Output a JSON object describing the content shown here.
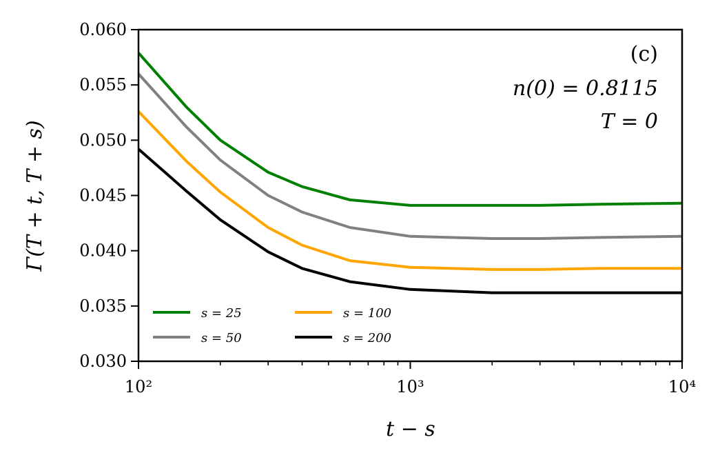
{
  "chart_data": {
    "type": "line",
    "xscale": "log",
    "xlim": [
      100,
      10000
    ],
    "ylim": [
      0.03,
      0.06
    ],
    "xlabel": "t − s",
    "ylabel": "Γ(T + t, T + s)",
    "x_ticks": [
      {
        "value": 100,
        "label": "10²"
      },
      {
        "value": 1000,
        "label": "10³"
      },
      {
        "value": 10000,
        "label": "10⁴"
      }
    ],
    "y_ticks": [
      {
        "value": 0.03,
        "label": "0.030"
      },
      {
        "value": 0.035,
        "label": "0.035"
      },
      {
        "value": 0.04,
        "label": "0.040"
      },
      {
        "value": 0.045,
        "label": "0.045"
      },
      {
        "value": 0.05,
        "label": "0.050"
      },
      {
        "value": 0.055,
        "label": "0.055"
      },
      {
        "value": 0.06,
        "label": "0.060"
      }
    ],
    "annotations": [
      "(c)",
      "n(0) = 0.8115",
      "T = 0"
    ],
    "grid": false,
    "legend_placement": "lower-left",
    "series": [
      {
        "name": "s = 25",
        "color": "#008000",
        "x": [
          100,
          150,
          200,
          300,
          400,
          600,
          1000,
          2000,
          3000,
          5000,
          10000
        ],
        "y": [
          0.0579,
          0.053,
          0.05,
          0.0471,
          0.0458,
          0.0446,
          0.0441,
          0.0441,
          0.0441,
          0.0442,
          0.0443
        ]
      },
      {
        "name": "s = 50",
        "color": "#808080",
        "x": [
          100,
          150,
          200,
          300,
          400,
          600,
          1000,
          2000,
          3000,
          5000,
          10000
        ],
        "y": [
          0.056,
          0.0512,
          0.0482,
          0.045,
          0.0435,
          0.0421,
          0.0413,
          0.0411,
          0.0411,
          0.0412,
          0.0413
        ]
      },
      {
        "name": "s = 100",
        "color": "#FFA500",
        "x": [
          100,
          150,
          200,
          300,
          400,
          600,
          1000,
          2000,
          3000,
          5000,
          10000
        ],
        "y": [
          0.0526,
          0.0481,
          0.0453,
          0.0421,
          0.0405,
          0.0391,
          0.0385,
          0.0383,
          0.0383,
          0.0384,
          0.0384
        ]
      },
      {
        "name": "s = 200",
        "color": "#000000",
        "x": [
          100,
          150,
          200,
          300,
          400,
          600,
          1000,
          2000,
          3000,
          5000,
          10000
        ],
        "y": [
          0.0492,
          0.0454,
          0.0428,
          0.0399,
          0.0384,
          0.0372,
          0.0365,
          0.0362,
          0.0362,
          0.0362,
          0.0362
        ]
      }
    ]
  }
}
